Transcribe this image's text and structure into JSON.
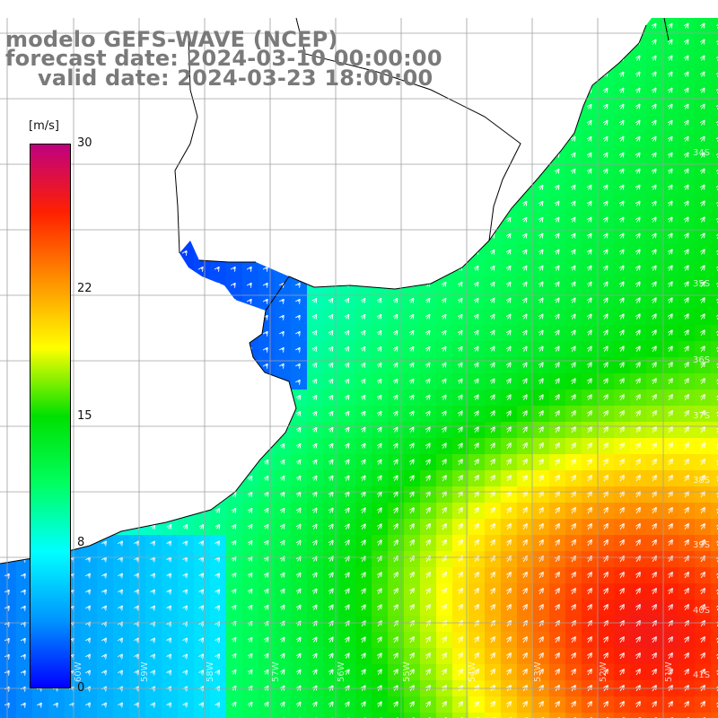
{
  "title": {
    "line1": "modelo GEFS-WAVE (NCEP)",
    "line2": "forecast date: 2024-03-10 00:00:00",
    "line3": "valid date: 2024-03-23 18:00:00"
  },
  "colorbar": {
    "unit": "[m/s]",
    "min": 0,
    "max": 30,
    "ticks": [
      "30",
      "22",
      "15",
      "8",
      "0"
    ],
    "tick_values": [
      30,
      22,
      15,
      8,
      0
    ],
    "colors": [
      "#0000ff",
      "#0096ff",
      "#00ffff",
      "#00ff60",
      "#00e000",
      "#ffff00",
      "#ff9000",
      "#ff2000",
      "#c00080"
    ]
  },
  "map": {
    "lat_labels": [
      "34S",
      "35S",
      "36S",
      "37S",
      "38S",
      "39S",
      "40S",
      "41S"
    ],
    "lon_labels": [
      "60W",
      "59W",
      "58W",
      "57W",
      "56W",
      "55W",
      "54W",
      "53W",
      "52W",
      "51W"
    ],
    "land_color": "#ffffff",
    "coast_color": "#000000",
    "grid_color": "#a0a0a0"
  }
}
